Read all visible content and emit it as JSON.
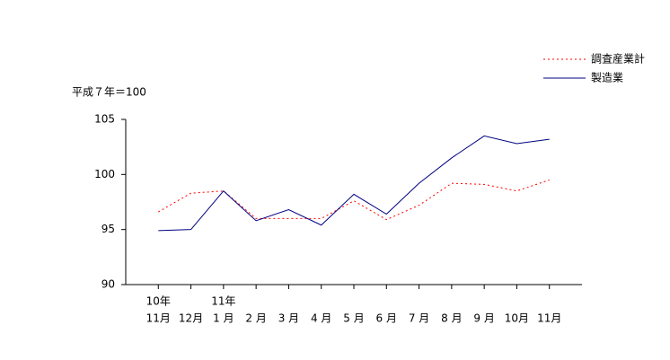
{
  "chart_data": {
    "type": "line",
    "unit_note": "平成７年＝100",
    "years": [
      "10年",
      null,
      "11年",
      null,
      null,
      null,
      null,
      null,
      null,
      null,
      null,
      null,
      null
    ],
    "categories": [
      "11月",
      "12月",
      "1 月",
      "2 月",
      "3 月",
      "4 月",
      "5 月",
      "6 月",
      "7 月",
      "8 月",
      "9 月",
      "10月",
      "11月"
    ],
    "series": [
      {
        "name": "調査産業計",
        "color": "#ff0000",
        "dash": "dotted",
        "values": [
          96.6,
          98.3,
          98.5,
          96.0,
          96.0,
          96.0,
          97.6,
          95.9,
          97.2,
          99.2,
          99.1,
          98.5,
          99.5
        ]
      },
      {
        "name": "製造業",
        "color": "#000080",
        "dash": "solid",
        "values": [
          94.9,
          95.0,
          98.5,
          95.8,
          96.8,
          95.4,
          98.2,
          96.4,
          99.2,
          101.5,
          103.5,
          102.8,
          103.2
        ]
      }
    ],
    "ylim": [
      90,
      105
    ],
    "yticks": [
      90,
      95,
      100,
      105
    ],
    "grid": false,
    "legend": "top-right"
  }
}
